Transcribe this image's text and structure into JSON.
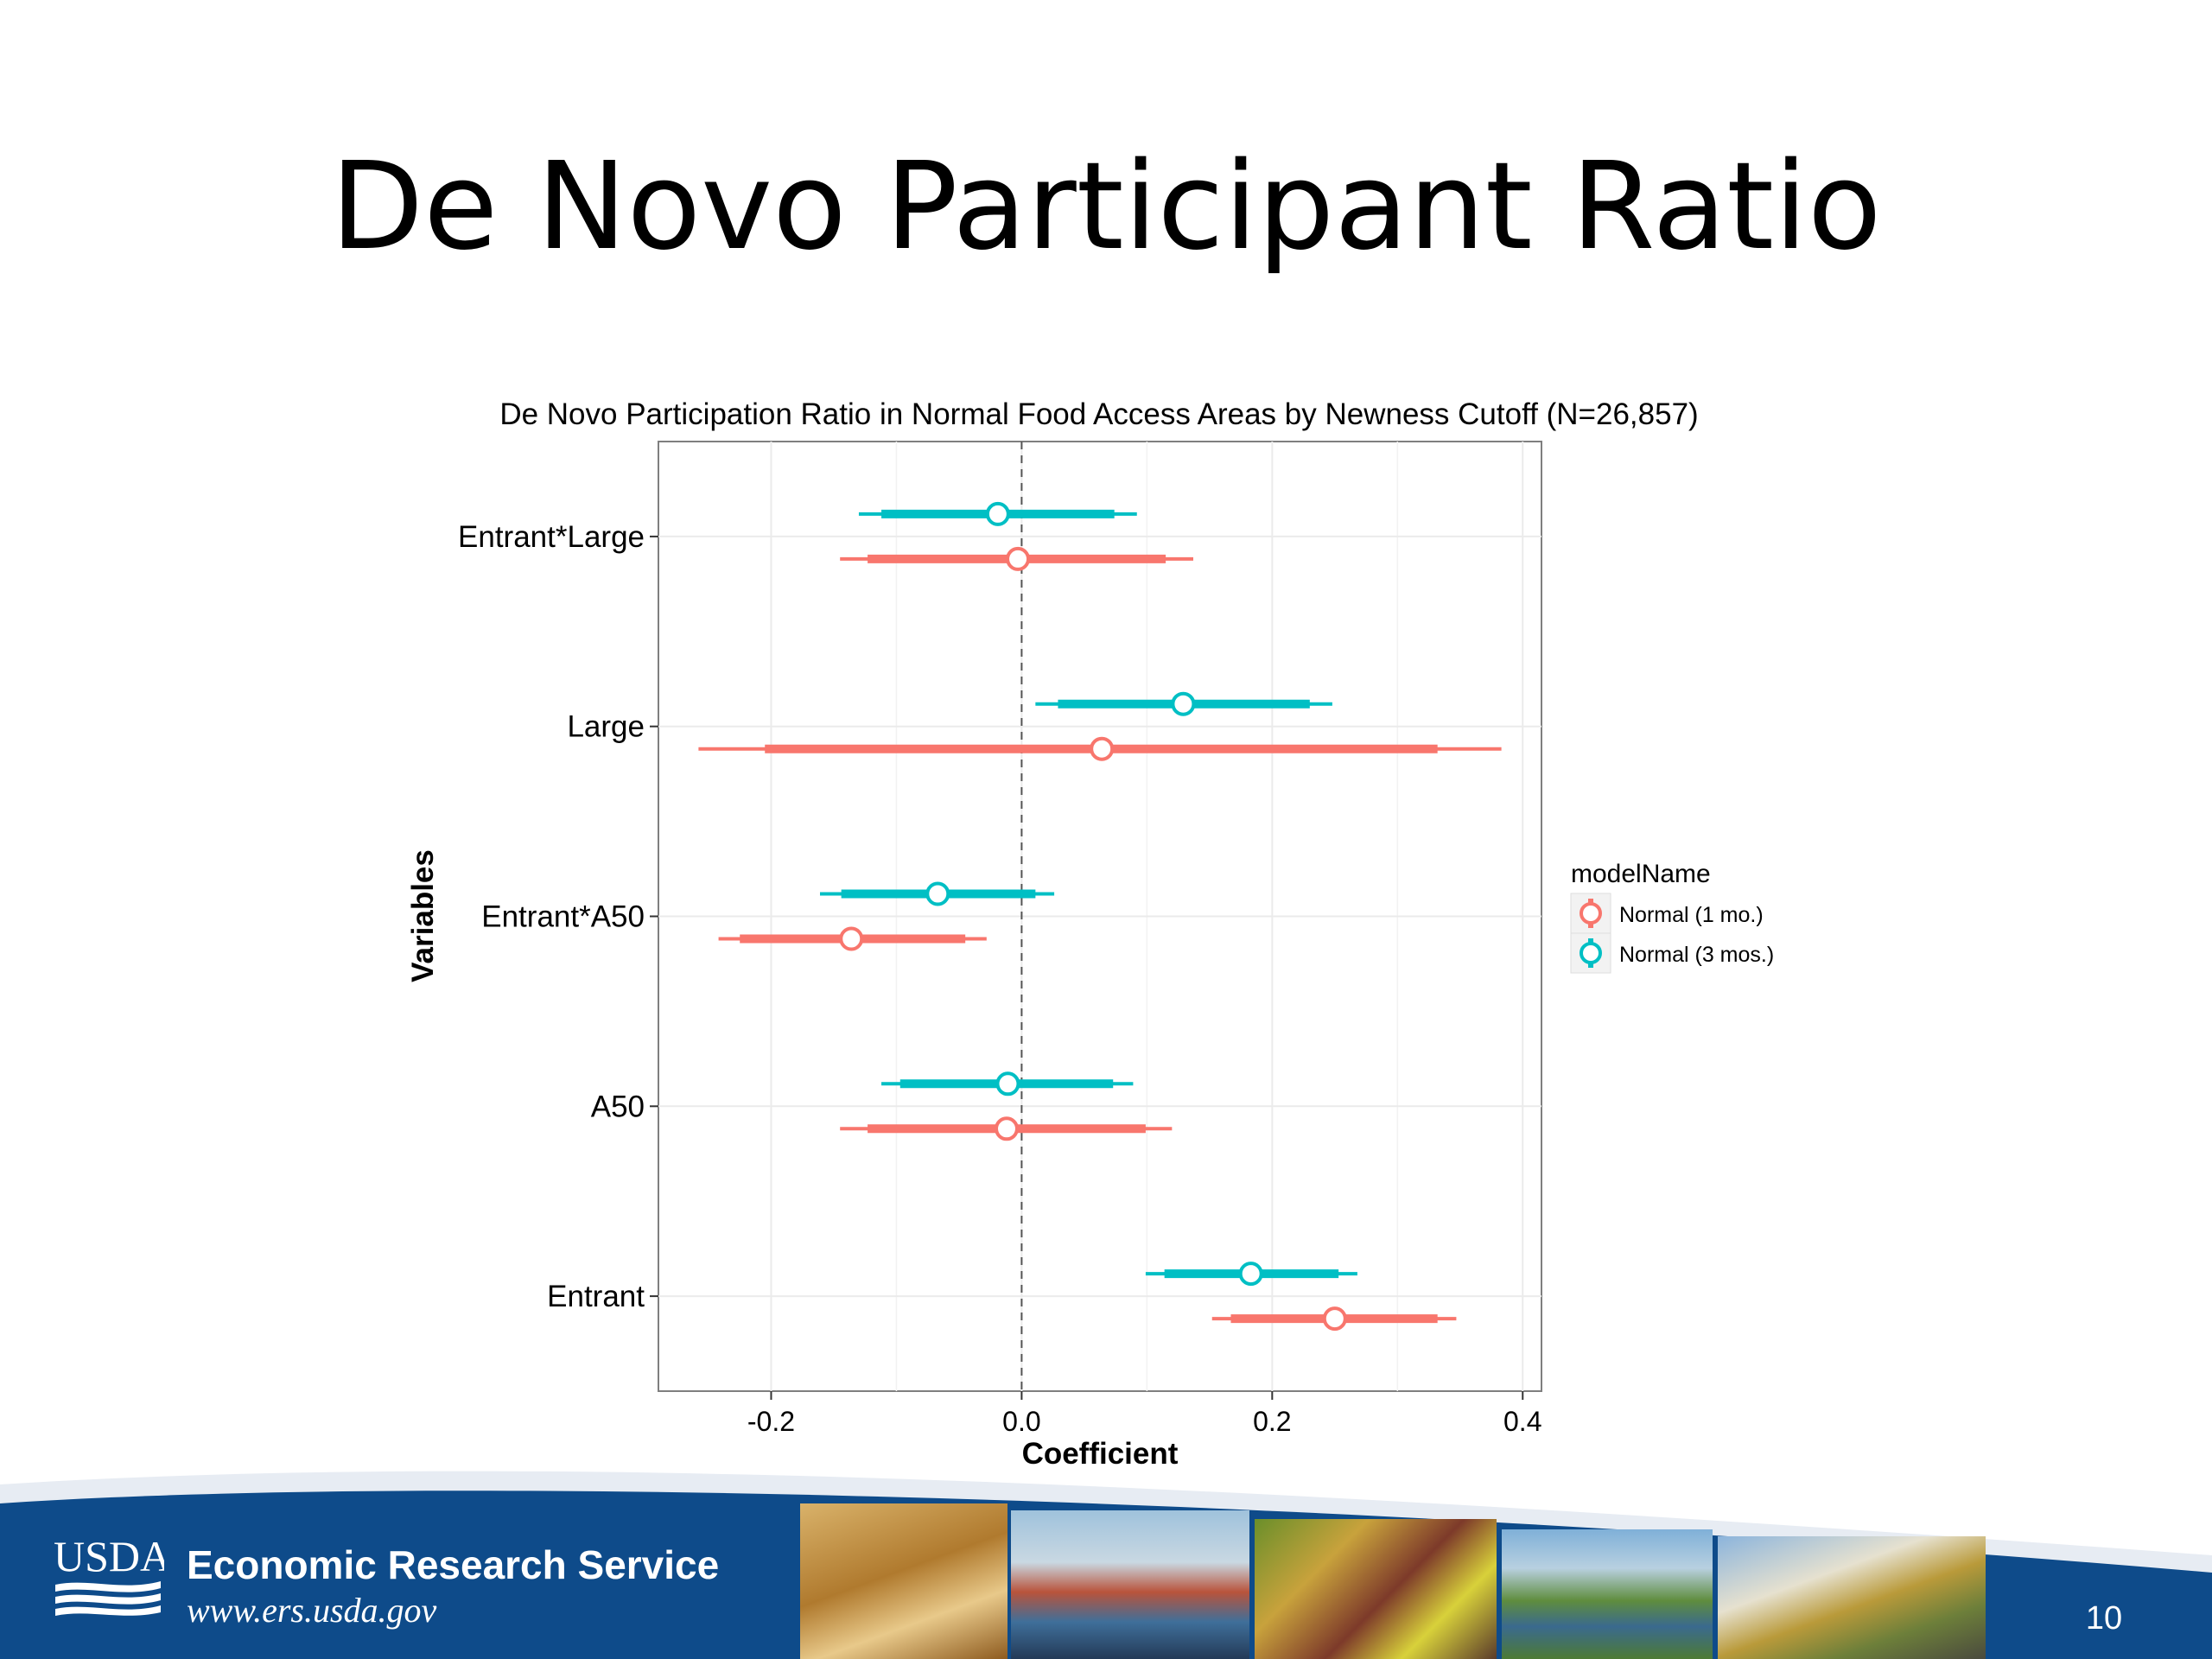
{
  "slide": {
    "title": "De Novo Participant Ratio",
    "page_number": "10"
  },
  "footer": {
    "logo_text": "USDA",
    "org_name": "Economic Research Service",
    "url": "www.ers.usda.gov",
    "band_color": "#0e4b8a"
  },
  "chart_data": {
    "type": "scatter",
    "subtype": "coefficient plot with confidence intervals",
    "title": "De Novo Participation Ratio in Normal Food Access Areas by Newness Cutoff (N=26,857)",
    "xlabel": "Coefficient",
    "ylabel": "Variables",
    "xlim": [
      -0.29,
      0.415
    ],
    "x_ticks": [
      -0.2,
      0.0,
      0.2,
      0.4
    ],
    "x_tick_labels": [
      "-0.2",
      "0.0",
      "0.2",
      "0.4"
    ],
    "reference_line_x": 0.0,
    "categories": [
      "Entrant*Large",
      "Large",
      "Entrant*A50",
      "A50",
      "Entrant"
    ],
    "legend": {
      "title": "modelName",
      "position": "right"
    },
    "grid": true,
    "series": [
      {
        "name": "Normal (1 mo.)",
        "color": "#f8766d",
        "points": [
          {
            "variable": "Entrant*Large",
            "estimate": -0.003,
            "inner": [
              -0.123,
              0.115
            ],
            "outer": [
              -0.145,
              0.137
            ]
          },
          {
            "variable": "Large",
            "estimate": 0.064,
            "inner": [
              -0.205,
              0.332
            ],
            "outer": [
              -0.258,
              0.383
            ]
          },
          {
            "variable": "Entrant*A50",
            "estimate": -0.136,
            "inner": [
              -0.225,
              -0.045
            ],
            "outer": [
              -0.242,
              -0.028
            ]
          },
          {
            "variable": "A50",
            "estimate": -0.012,
            "inner": [
              -0.123,
              0.099
            ],
            "outer": [
              -0.145,
              0.12
            ]
          },
          {
            "variable": "Entrant",
            "estimate": 0.25,
            "inner": [
              0.167,
              0.332
            ],
            "outer": [
              0.152,
              0.347
            ]
          }
        ]
      },
      {
        "name": "Normal (3 mos.)",
        "color": "#00bfc4",
        "points": [
          {
            "variable": "Entrant*Large",
            "estimate": -0.019,
            "inner": [
              -0.112,
              0.074
            ],
            "outer": [
              -0.13,
              0.092
            ]
          },
          {
            "variable": "Large",
            "estimate": 0.129,
            "inner": [
              0.029,
              0.23
            ],
            "outer": [
              0.011,
              0.248
            ]
          },
          {
            "variable": "Entrant*A50",
            "estimate": -0.067,
            "inner": [
              -0.144,
              0.011
            ],
            "outer": [
              -0.161,
              0.026
            ]
          },
          {
            "variable": "A50",
            "estimate": -0.011,
            "inner": [
              -0.097,
              0.073
            ],
            "outer": [
              -0.112,
              0.089
            ]
          },
          {
            "variable": "Entrant",
            "estimate": 0.183,
            "inner": [
              0.114,
              0.253
            ],
            "outer": [
              0.099,
              0.268
            ]
          }
        ]
      }
    ]
  }
}
